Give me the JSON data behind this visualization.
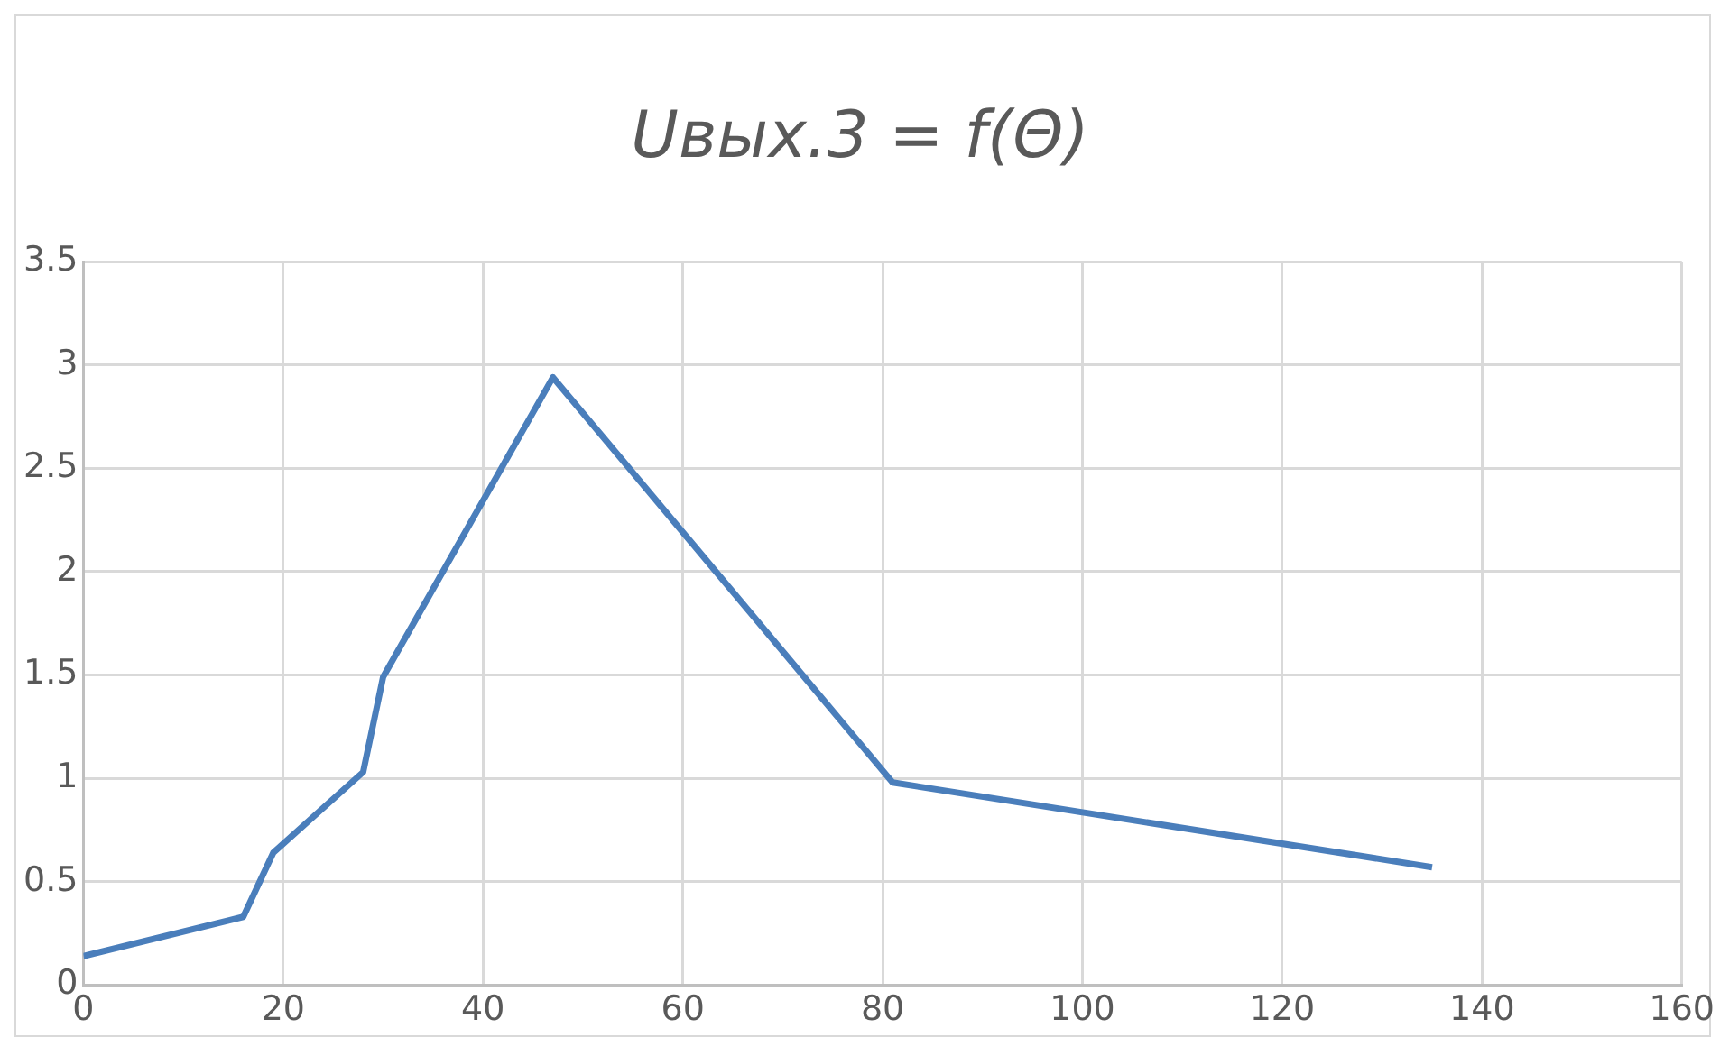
{
  "chart_data": {
    "type": "line",
    "title": "Uвых.3 = f(Θ)",
    "x": [
      0,
      16,
      19,
      28,
      30,
      47,
      81,
      135
    ],
    "series": [
      {
        "color": "#4a7ebb",
        "values": [
          0.14,
          0.33,
          0.64,
          1.03,
          1.49,
          2.94,
          0.98,
          0.57
        ]
      }
    ],
    "xlim": [
      0,
      160
    ],
    "xticks": [
      0,
      20,
      40,
      60,
      80,
      100,
      120,
      140,
      160
    ],
    "ylim": [
      0,
      3.5
    ],
    "yticks": [
      0,
      0.5,
      1,
      1.5,
      2,
      2.5,
      3,
      3.5
    ],
    "grid": true,
    "legend": false,
    "marker": "none",
    "line_style": "solid"
  }
}
